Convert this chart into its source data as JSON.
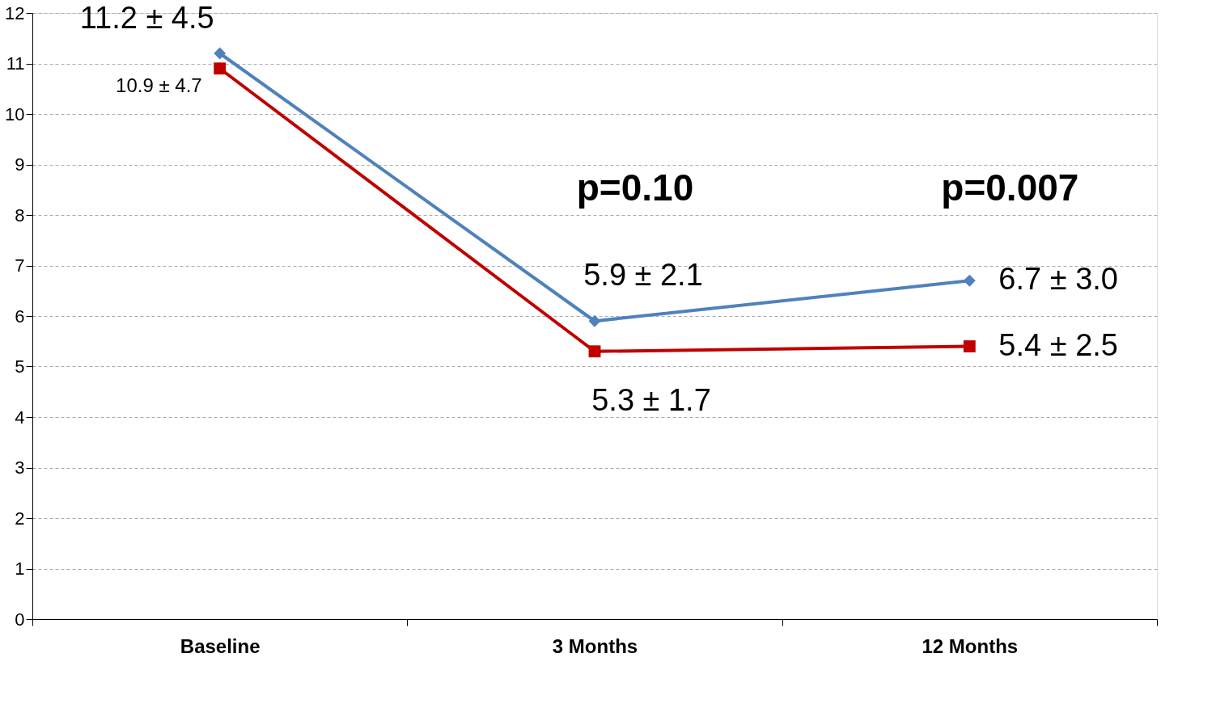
{
  "chart_data": {
    "type": "line",
    "categories": [
      "Baseline",
      "3 Months",
      "12 Months"
    ],
    "series": [
      {
        "color": "#4f81bd",
        "marker": "diamond",
        "values": [
          11.2,
          5.9,
          6.7
        ],
        "value_labels": [
          "11.2 ± 4.5",
          "5.9 ± 2.1",
          "6.7 ± 3.0"
        ]
      },
      {
        "color": "#c00000",
        "marker": "square",
        "values": [
          10.9,
          5.3,
          5.4
        ],
        "value_labels": [
          "10.9 ± 4.7",
          "5.3 ± 1.7",
          "5.4 ± 2.5"
        ]
      }
    ],
    "ylim": [
      0,
      12
    ],
    "yticks": [
      0,
      1,
      2,
      3,
      4,
      5,
      6,
      7,
      8,
      9,
      10,
      11,
      12
    ],
    "grid": "y",
    "annotations": [
      "p=0.10",
      "p=0.007"
    ]
  }
}
